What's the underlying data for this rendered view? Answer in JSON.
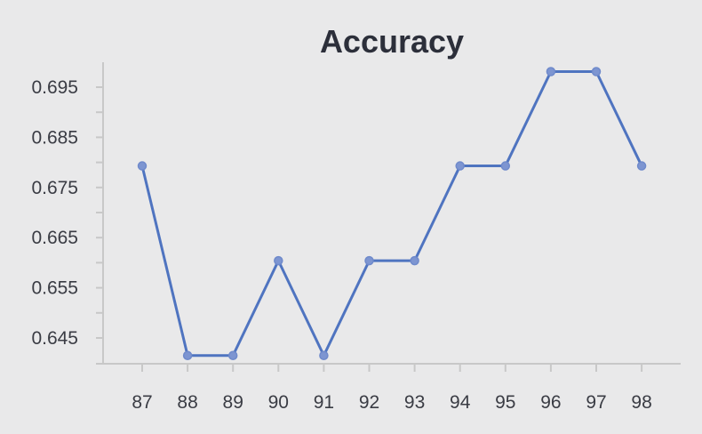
{
  "chart_data": {
    "type": "line",
    "title": "Accuracy",
    "xlabel": "",
    "ylabel": "",
    "categories": [
      "87",
      "88",
      "89",
      "90",
      "91",
      "92",
      "93",
      "94",
      "95",
      "96",
      "97",
      "98"
    ],
    "series": [
      {
        "values": [
          0.6793,
          0.6415,
          0.6415,
          0.6604,
          0.6415,
          0.6604,
          0.6604,
          0.6793,
          0.6793,
          0.6981,
          0.6981,
          0.6793
        ]
      }
    ],
    "y_ticks": [
      "0.645",
      "0.655",
      "0.665",
      "0.675",
      "0.685",
      "0.695"
    ],
    "ylim": [
      0.6395,
      0.7
    ],
    "grid": false,
    "legend": "none",
    "colors": {
      "line": "#4f74c0",
      "point": "#7d95d1",
      "axis": "#c8c8c8",
      "background": "#e9e9ea",
      "title": "#2c2f3a"
    }
  }
}
